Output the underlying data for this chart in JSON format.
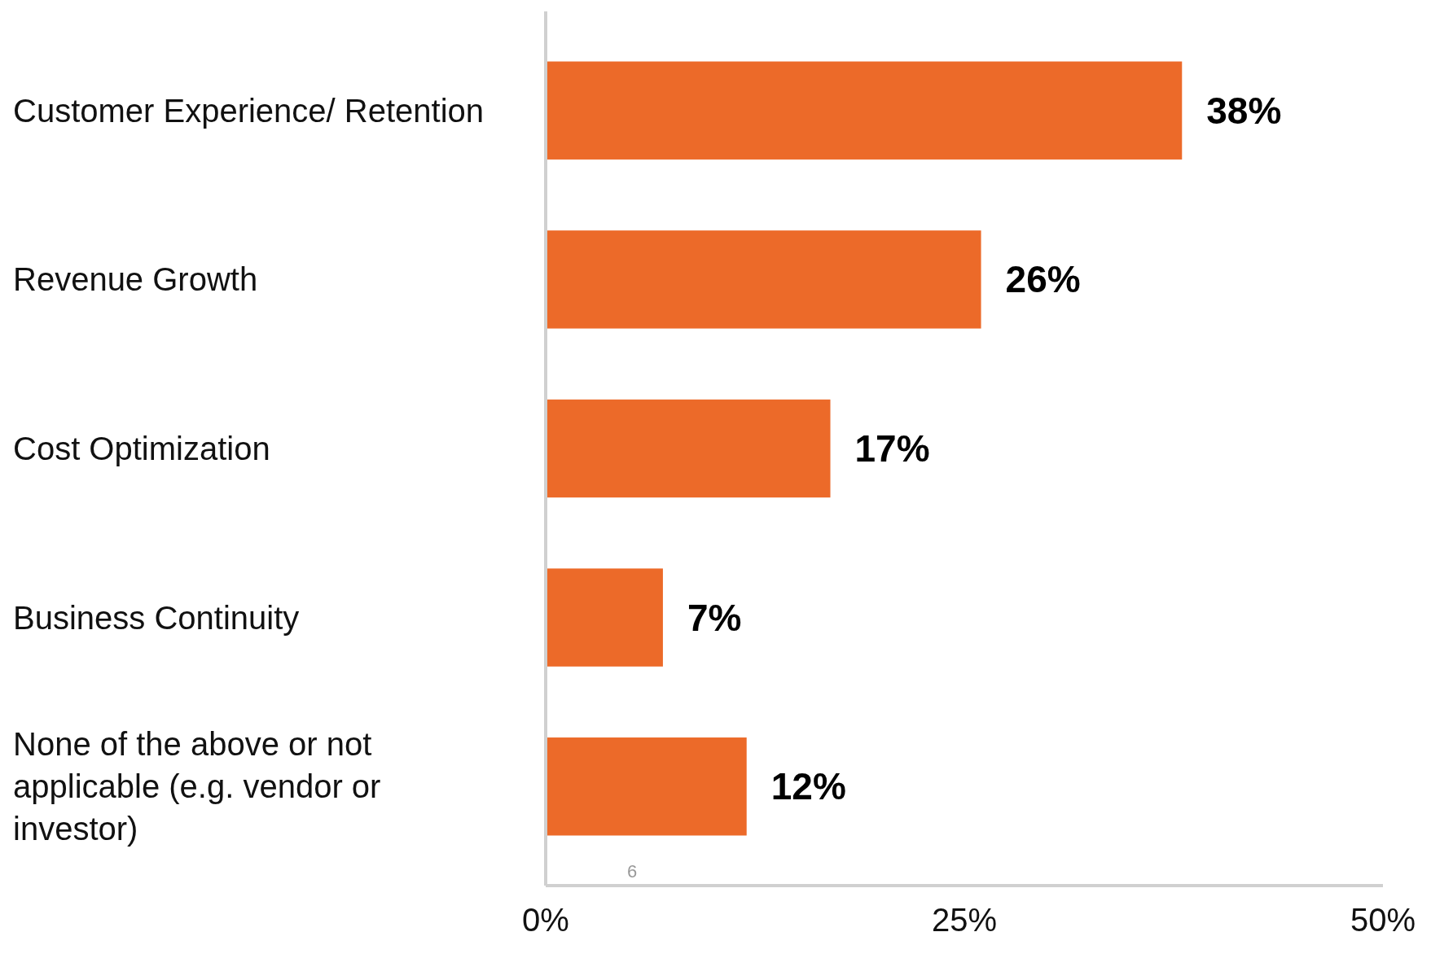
{
  "chart_data": {
    "type": "bar",
    "orientation": "horizontal",
    "categories": [
      "Customer Experience/ Retention",
      "Revenue Growth",
      "Cost Optimization",
      "Business Continuity",
      "None of the above or not applicable (e.g. vendor or investor)"
    ],
    "values": [
      38,
      26,
      17,
      7,
      12
    ],
    "value_labels": [
      "38%",
      "26%",
      "17%",
      "7%",
      "12%"
    ],
    "color": "#ec6a29",
    "xlim": [
      0,
      50
    ],
    "xticks": [
      {
        "value": 0,
        "label": "0%"
      },
      {
        "value": 25,
        "label": "25%"
      },
      {
        "value": 50,
        "label": "50%"
      }
    ],
    "grid": false,
    "annotations": [
      "6"
    ]
  }
}
